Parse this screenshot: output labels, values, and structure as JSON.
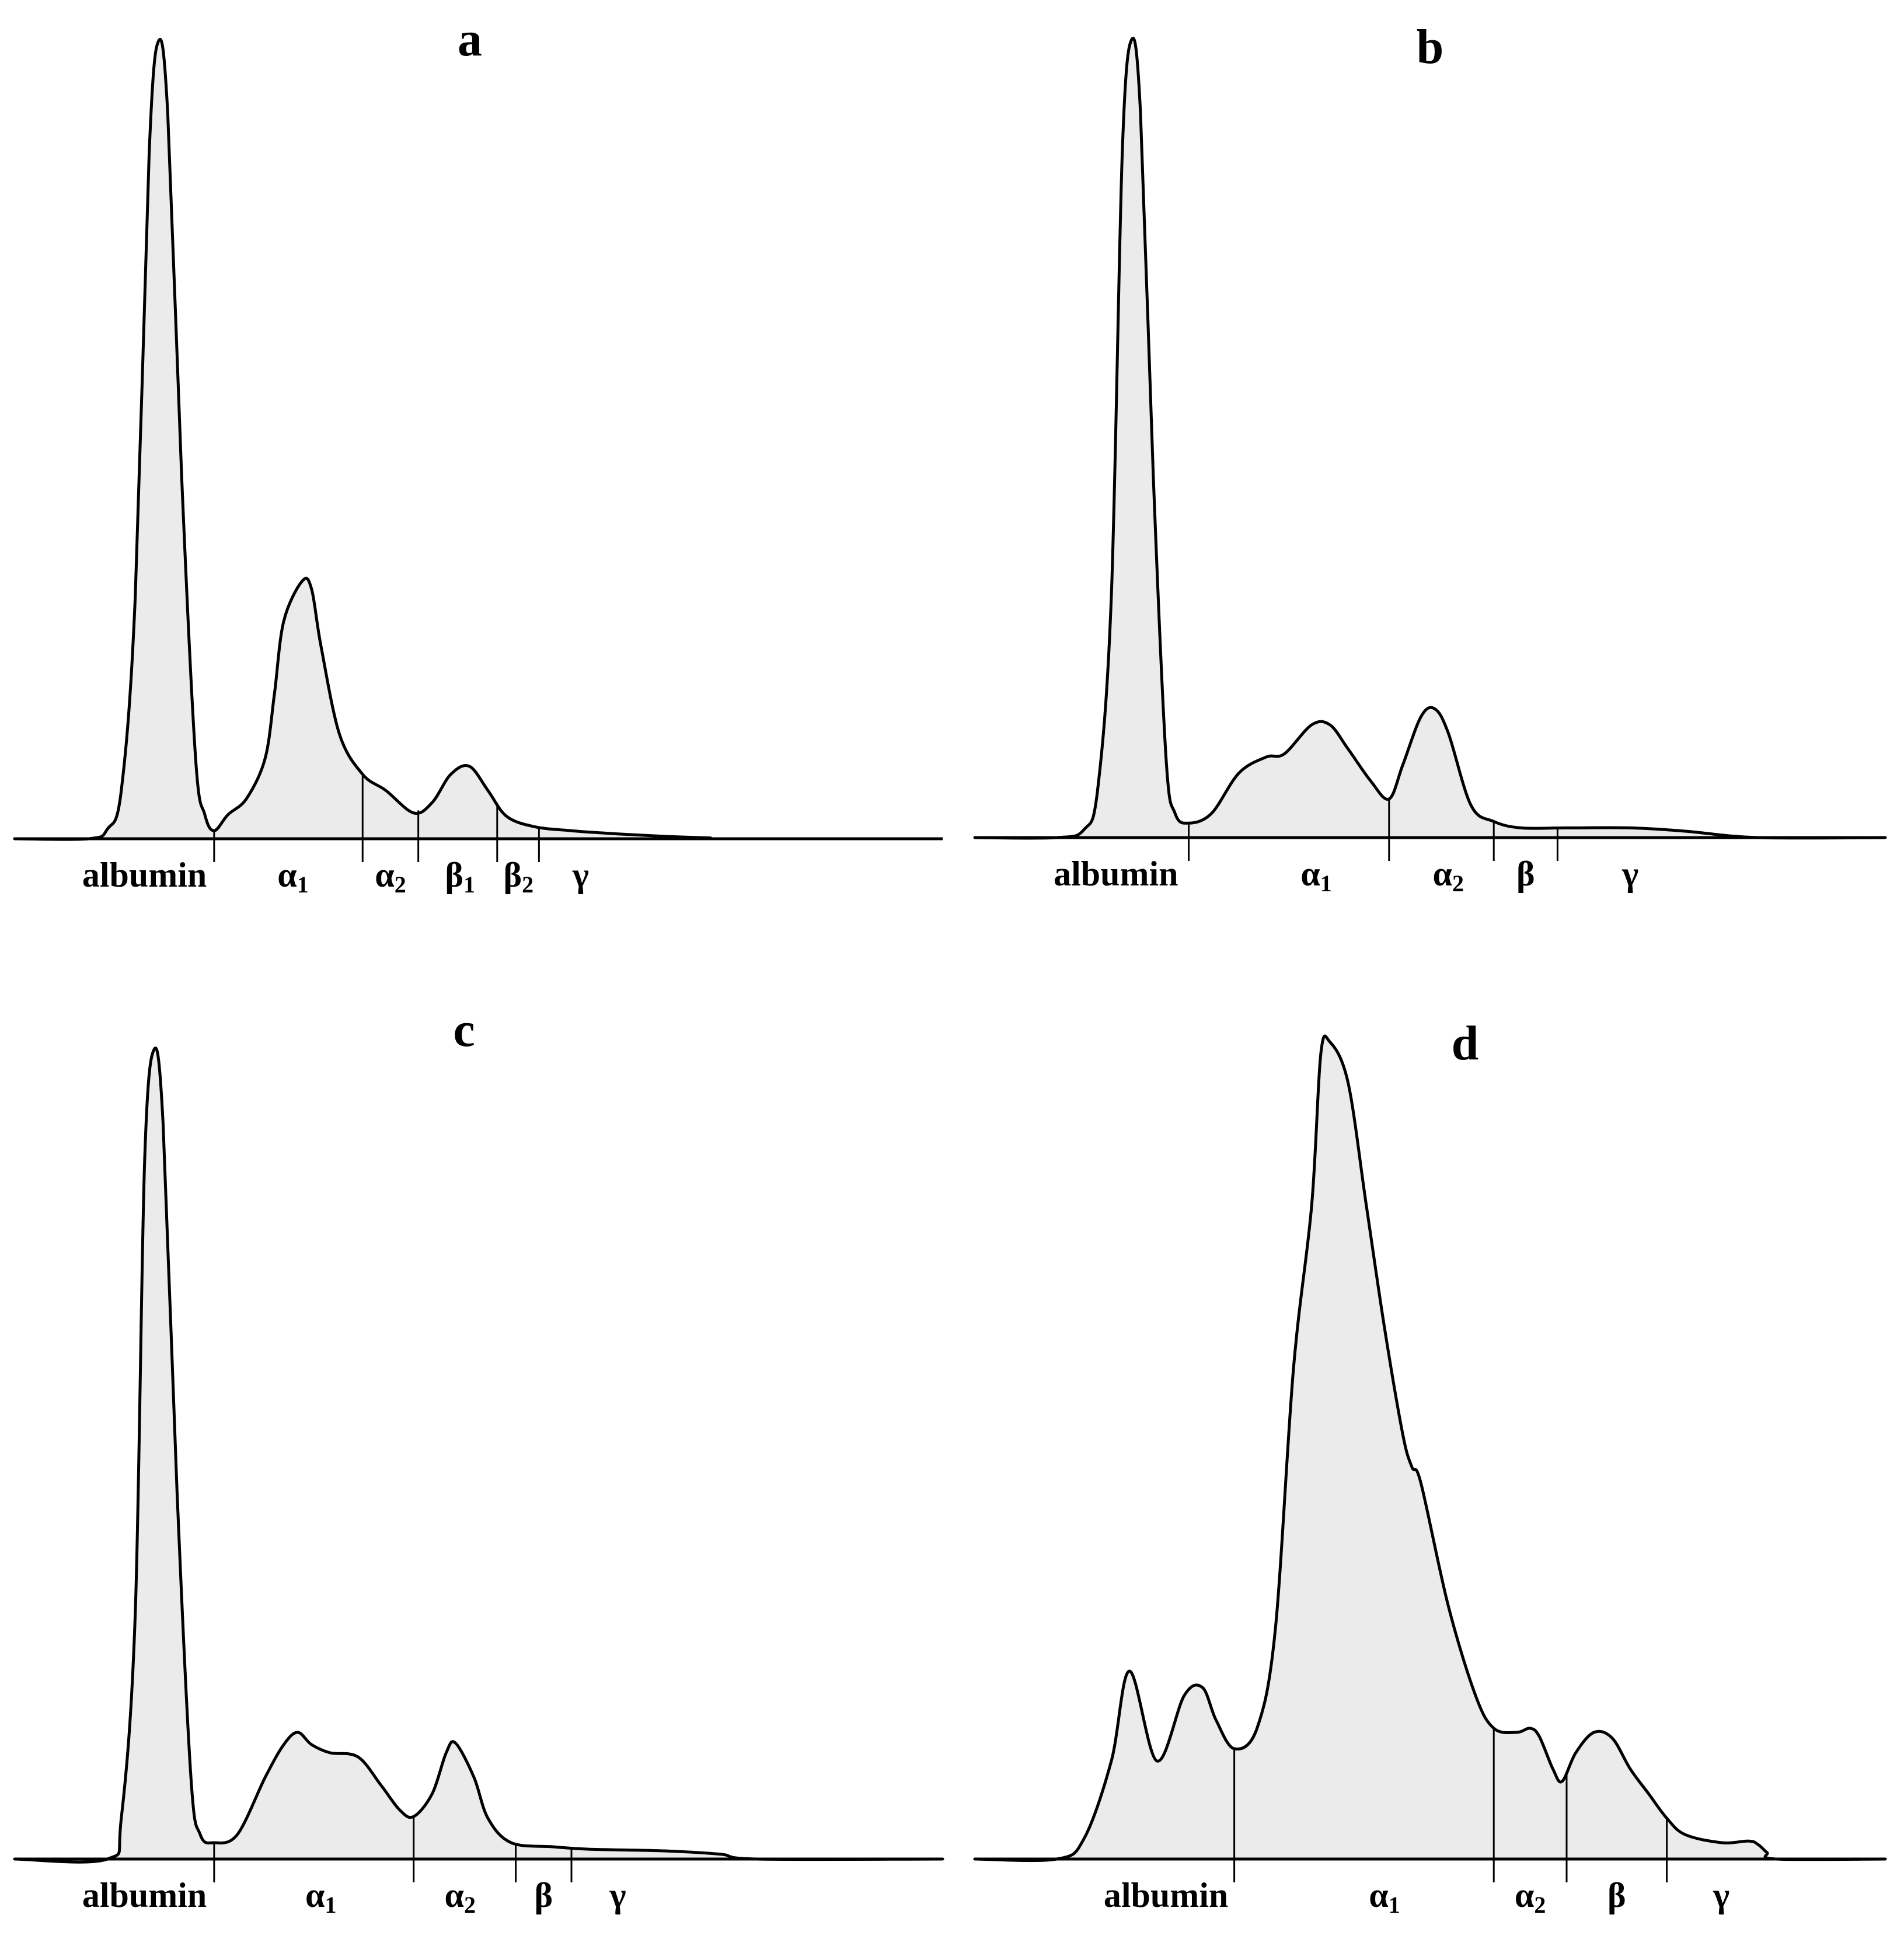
{
  "chart_data": [
    {
      "type": "area",
      "title": "a",
      "fill_color": "#ebebeb",
      "line_color": "#000000",
      "x_axis": {
        "range": [
          0,
          1
        ]
      },
      "y_axis": {
        "range": [
          0,
          1
        ]
      },
      "points": [
        [
          0.0,
          0.0
        ],
        [
          0.08,
          0.0
        ],
        [
          0.1,
          0.012
        ],
        [
          0.115,
          0.06
        ],
        [
          0.13,
          0.3
        ],
        [
          0.145,
          0.85
        ],
        [
          0.155,
          0.99
        ],
        [
          0.165,
          0.9
        ],
        [
          0.18,
          0.45
        ],
        [
          0.195,
          0.1
        ],
        [
          0.205,
          0.03
        ],
        [
          0.215,
          0.01
        ],
        [
          0.23,
          0.03
        ],
        [
          0.25,
          0.05
        ],
        [
          0.27,
          0.1
        ],
        [
          0.28,
          0.18
        ],
        [
          0.29,
          0.27
        ],
        [
          0.31,
          0.32
        ],
        [
          0.32,
          0.31
        ],
        [
          0.33,
          0.24
        ],
        [
          0.35,
          0.13
        ],
        [
          0.375,
          0.08
        ],
        [
          0.4,
          0.06
        ],
        [
          0.43,
          0.032
        ],
        [
          0.45,
          0.045
        ],
        [
          0.47,
          0.08
        ],
        [
          0.49,
          0.09
        ],
        [
          0.51,
          0.06
        ],
        [
          0.53,
          0.028
        ],
        [
          0.56,
          0.015
        ],
        [
          0.6,
          0.01
        ],
        [
          0.65,
          0.006
        ],
        [
          0.7,
          0.003
        ],
        [
          0.75,
          0.001
        ]
      ],
      "boundaries": [
        0.215,
        0.375,
        0.435,
        0.52,
        0.565
      ],
      "bands": [
        {
          "symbol": "albumin",
          "sub": "",
          "x": 0.14
        },
        {
          "symbol": "α",
          "sub": "1",
          "x": 0.3
        },
        {
          "symbol": "α",
          "sub": "2",
          "x": 0.405
        },
        {
          "symbol": "β",
          "sub": "1",
          "x": 0.48
        },
        {
          "symbol": "β",
          "sub": "2",
          "x": 0.543
        },
        {
          "symbol": "γ",
          "sub": "",
          "x": 0.61
        }
      ]
    },
    {
      "type": "area",
      "title": "b",
      "fill_color": "#ebebeb",
      "line_color": "#000000",
      "x_axis": {
        "range": [
          0,
          1
        ]
      },
      "y_axis": {
        "range": [
          0,
          1
        ]
      },
      "points": [
        [
          0.0,
          0.0
        ],
        [
          0.09,
          0.0
        ],
        [
          0.12,
          0.01
        ],
        [
          0.135,
          0.06
        ],
        [
          0.15,
          0.3
        ],
        [
          0.162,
          0.85
        ],
        [
          0.172,
          0.99
        ],
        [
          0.182,
          0.9
        ],
        [
          0.196,
          0.45
        ],
        [
          0.21,
          0.1
        ],
        [
          0.22,
          0.03
        ],
        [
          0.235,
          0.018
        ],
        [
          0.26,
          0.03
        ],
        [
          0.29,
          0.08
        ],
        [
          0.32,
          0.1
        ],
        [
          0.34,
          0.104
        ],
        [
          0.37,
          0.14
        ],
        [
          0.39,
          0.14
        ],
        [
          0.41,
          0.11
        ],
        [
          0.435,
          0.07
        ],
        [
          0.455,
          0.048
        ],
        [
          0.47,
          0.09
        ],
        [
          0.49,
          0.15
        ],
        [
          0.505,
          0.16
        ],
        [
          0.52,
          0.13
        ],
        [
          0.545,
          0.04
        ],
        [
          0.57,
          0.02
        ],
        [
          0.6,
          0.012
        ],
        [
          0.65,
          0.012
        ],
        [
          0.72,
          0.012
        ],
        [
          0.78,
          0.008
        ],
        [
          0.86,
          0.0
        ],
        [
          1.0,
          0.0
        ]
      ],
      "boundaries": [
        0.235,
        0.455,
        0.57,
        0.64
      ],
      "bands": [
        {
          "symbol": "albumin",
          "sub": "",
          "x": 0.155
        },
        {
          "symbol": "α",
          "sub": "1",
          "x": 0.375
        },
        {
          "symbol": "α",
          "sub": "2",
          "x": 0.52
        },
        {
          "symbol": "β",
          "sub": "",
          "x": 0.605
        },
        {
          "symbol": "γ",
          "sub": "",
          "x": 0.72
        }
      ]
    },
    {
      "type": "area",
      "title": "c",
      "fill_color": "#ebebeb",
      "line_color": "#000000",
      "x_axis": {
        "range": [
          0,
          1
        ]
      },
      "y_axis": {
        "range": [
          0,
          1
        ]
      },
      "points": [
        [
          0.0,
          0.0
        ],
        [
          0.1,
          0.0
        ],
        [
          0.115,
          0.05
        ],
        [
          0.13,
          0.3
        ],
        [
          0.14,
          0.85
        ],
        [
          0.15,
          0.99
        ],
        [
          0.16,
          0.9
        ],
        [
          0.175,
          0.45
        ],
        [
          0.19,
          0.1
        ],
        [
          0.2,
          0.03
        ],
        [
          0.215,
          0.02
        ],
        [
          0.24,
          0.03
        ],
        [
          0.27,
          0.1
        ],
        [
          0.29,
          0.14
        ],
        [
          0.305,
          0.155
        ],
        [
          0.32,
          0.14
        ],
        [
          0.34,
          0.13
        ],
        [
          0.37,
          0.125
        ],
        [
          0.395,
          0.09
        ],
        [
          0.415,
          0.06
        ],
        [
          0.43,
          0.052
        ],
        [
          0.45,
          0.08
        ],
        [
          0.465,
          0.13
        ],
        [
          0.475,
          0.142
        ],
        [
          0.495,
          0.1
        ],
        [
          0.51,
          0.05
        ],
        [
          0.535,
          0.02
        ],
        [
          0.58,
          0.015
        ],
        [
          0.62,
          0.012
        ],
        [
          0.7,
          0.01
        ],
        [
          0.76,
          0.006
        ],
        [
          0.8,
          0.0
        ],
        [
          1.0,
          0.0
        ]
      ],
      "boundaries": [
        0.215,
        0.43,
        0.54,
        0.6
      ],
      "bands": [
        {
          "symbol": "albumin",
          "sub": "",
          "x": 0.14
        },
        {
          "symbol": "α",
          "sub": "1",
          "x": 0.33
        },
        {
          "symbol": "α",
          "sub": "2",
          "x": 0.48
        },
        {
          "symbol": "β",
          "sub": "",
          "x": 0.57
        },
        {
          "symbol": "γ",
          "sub": "",
          "x": 0.65
        }
      ]
    },
    {
      "type": "area",
      "title": "d",
      "fill_color": "#ebebeb",
      "line_color": "#000000",
      "x_axis": {
        "range": [
          0,
          1
        ]
      },
      "y_axis": {
        "range": [
          0,
          1
        ]
      },
      "points": [
        [
          0.0,
          0.0
        ],
        [
          0.09,
          0.0
        ],
        [
          0.12,
          0.025
        ],
        [
          0.15,
          0.12
        ],
        [
          0.17,
          0.23
        ],
        [
          0.2,
          0.12
        ],
        [
          0.23,
          0.2
        ],
        [
          0.25,
          0.21
        ],
        [
          0.265,
          0.17
        ],
        [
          0.285,
          0.135
        ],
        [
          0.31,
          0.16
        ],
        [
          0.33,
          0.28
        ],
        [
          0.35,
          0.6
        ],
        [
          0.37,
          0.8
        ],
        [
          0.38,
          0.985
        ],
        [
          0.39,
          1.0
        ],
        [
          0.41,
          0.95
        ],
        [
          0.43,
          0.8
        ],
        [
          0.45,
          0.65
        ],
        [
          0.47,
          0.52
        ],
        [
          0.48,
          0.48
        ],
        [
          0.49,
          0.46
        ],
        [
          0.52,
          0.31
        ],
        [
          0.55,
          0.2
        ],
        [
          0.57,
          0.16
        ],
        [
          0.595,
          0.155
        ],
        [
          0.61,
          0.16
        ],
        [
          0.62,
          0.15
        ],
        [
          0.635,
          0.11
        ],
        [
          0.645,
          0.095
        ],
        [
          0.66,
          0.13
        ],
        [
          0.68,
          0.155
        ],
        [
          0.7,
          0.148
        ],
        [
          0.72,
          0.11
        ],
        [
          0.74,
          0.08
        ],
        [
          0.76,
          0.05
        ],
        [
          0.78,
          0.03
        ],
        [
          0.82,
          0.02
        ],
        [
          0.85,
          0.022
        ],
        [
          0.86,
          0.018
        ],
        [
          0.87,
          0.008
        ],
        [
          0.88,
          0.0
        ],
        [
          1.0,
          0.0
        ]
      ],
      "boundaries": [
        0.285,
        0.57,
        0.65,
        0.76
      ],
      "bands": [
        {
          "symbol": "albumin",
          "sub": "",
          "x": 0.21
        },
        {
          "symbol": "α",
          "sub": "1",
          "x": 0.45
        },
        {
          "symbol": "α",
          "sub": "2",
          "x": 0.61
        },
        {
          "symbol": "β",
          "sub": "",
          "x": 0.705
        },
        {
          "symbol": "γ",
          "sub": "",
          "x": 0.82
        }
      ]
    }
  ]
}
